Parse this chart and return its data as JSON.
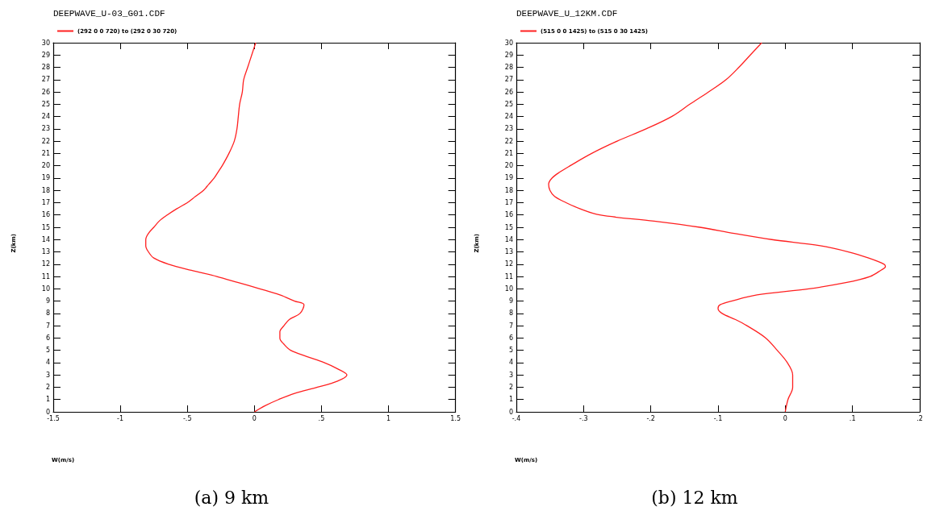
{
  "chart_data": [
    {
      "type": "line",
      "title": "DEEPWAVE_U-03_G01.CDF",
      "xlabel": "W(m/s)",
      "ylabel": "Z(km)",
      "annotations": [
        "(a) 9 km"
      ],
      "legend": "top left",
      "marker": "none",
      "grid": false,
      "x": [
        0,
        0.08,
        0.18,
        0.3,
        0.47,
        0.62,
        0.69,
        0.62,
        0.52,
        0.39,
        0.27,
        0.22,
        0.19,
        0.19,
        0.22,
        0.26,
        0.34,
        0.37,
        0.3,
        0.19,
        0.04,
        -0.12,
        -0.28,
        -0.47,
        -0.64,
        -0.75,
        -0.79,
        -0.81,
        -0.81,
        -0.79,
        -0.75,
        -0.71,
        -0.65,
        -0.58,
        -0.5,
        -0.44,
        -0.38,
        -0.34,
        -0.3,
        -0.27,
        -0.24,
        -0.19,
        -0.15,
        -0.13,
        -0.12,
        -0.11,
        -0.09,
        -0.08,
        -0.05,
        -0.02,
        0.01
      ],
      "series": [
        {
          "name": "(292 0 0 720) to (292 0 30 720)",
          "color": "#ff2020",
          "values": [
            0,
            0.5,
            1,
            1.5,
            2,
            2.5,
            3,
            3.5,
            4,
            4.5,
            5,
            5.5,
            6,
            6.5,
            7,
            7.5,
            8,
            8.7,
            9,
            9.5,
            10,
            10.5,
            11,
            11.5,
            12,
            12.5,
            13,
            13.5,
            14,
            14.5,
            15,
            15.5,
            16,
            16.5,
            17,
            17.5,
            18,
            18.5,
            19,
            19.5,
            20,
            21,
            22,
            23,
            24,
            25,
            26,
            27,
            28,
            29,
            30
          ]
        }
      ],
      "xlim": [
        -1.5,
        1.5
      ],
      "xticks": [
        {
          "value": -1.5,
          "label": "-1.5"
        },
        -1,
        {
          "value": -0.5,
          "label": "-.5"
        },
        0,
        {
          "value": 0.5,
          "label": ".5"
        },
        1,
        {
          "value": 1.5,
          "label": "1.5"
        }
      ],
      "ylim": [
        0,
        30
      ],
      "yticks": [
        0,
        1,
        2,
        3,
        4,
        5,
        6,
        7,
        8,
        9,
        10,
        11,
        12,
        13,
        14,
        15,
        16,
        17,
        18,
        19,
        20,
        21,
        22,
        23,
        24,
        25,
        26,
        27,
        28,
        29,
        30
      ]
    },
    {
      "type": "line",
      "title": "DEEPWAVE_U_12KM.CDF",
      "xlabel": "W(m/s)",
      "ylabel": "Z(km)",
      "annotations": [
        "(b) 12 km"
      ],
      "legend": "top left",
      "marker": "none",
      "grid": false,
      "x": [
        0,
        0.004,
        0.011,
        0.011,
        0.011,
        0.003,
        -0.012,
        -0.029,
        -0.057,
        -0.074,
        -0.094,
        -0.1,
        -0.097,
        -0.08,
        -0.042,
        0.035,
        0.09,
        0.126,
        0.142,
        0.149,
        0.147,
        0.124,
        0.094,
        0.052,
        -0.02,
        -0.076,
        -0.127,
        -0.195,
        -0.276,
        -0.305,
        -0.326,
        -0.343,
        -0.35,
        -0.352,
        -0.347,
        -0.335,
        -0.32,
        -0.288,
        -0.25,
        -0.207,
        -0.169,
        -0.142,
        -0.114,
        -0.088,
        -0.069,
        -0.052,
        -0.035
      ],
      "series": [
        {
          "name": "(515 0 0 1425) to (515 0 30 1425)",
          "color": "#ff2020",
          "values": [
            0,
            1,
            2,
            2.6,
            3,
            4,
            5,
            6,
            7,
            7.5,
            8,
            8.4,
            8.7,
            9,
            9.5,
            10,
            10.5,
            11,
            11.5,
            11.8,
            12,
            12.5,
            13,
            13.5,
            14,
            14.5,
            15,
            15.5,
            16,
            16.5,
            17,
            17.5,
            18,
            18.5,
            19,
            19.5,
            20,
            21,
            22,
            23,
            24,
            25,
            26,
            27,
            28,
            29,
            30
          ]
        }
      ],
      "xlim": [
        -0.4,
        0.2
      ],
      "xticks": [
        {
          "value": -0.4,
          "label": "-.4"
        },
        {
          "value": -0.3,
          "label": "-.3"
        },
        {
          "value": -0.2,
          "label": "-.2"
        },
        {
          "value": -0.1,
          "label": "-.1"
        },
        0,
        {
          "value": 0.1,
          "label": ".1"
        },
        {
          "value": 0.2,
          "label": ".2"
        }
      ],
      "ylim": [
        0,
        30
      ],
      "yticks": [
        0,
        1,
        2,
        3,
        4,
        5,
        6,
        7,
        8,
        9,
        10,
        11,
        12,
        13,
        14,
        15,
        16,
        17,
        18,
        19,
        20,
        21,
        22,
        23,
        24,
        25,
        26,
        27,
        28,
        29,
        30
      ]
    }
  ]
}
